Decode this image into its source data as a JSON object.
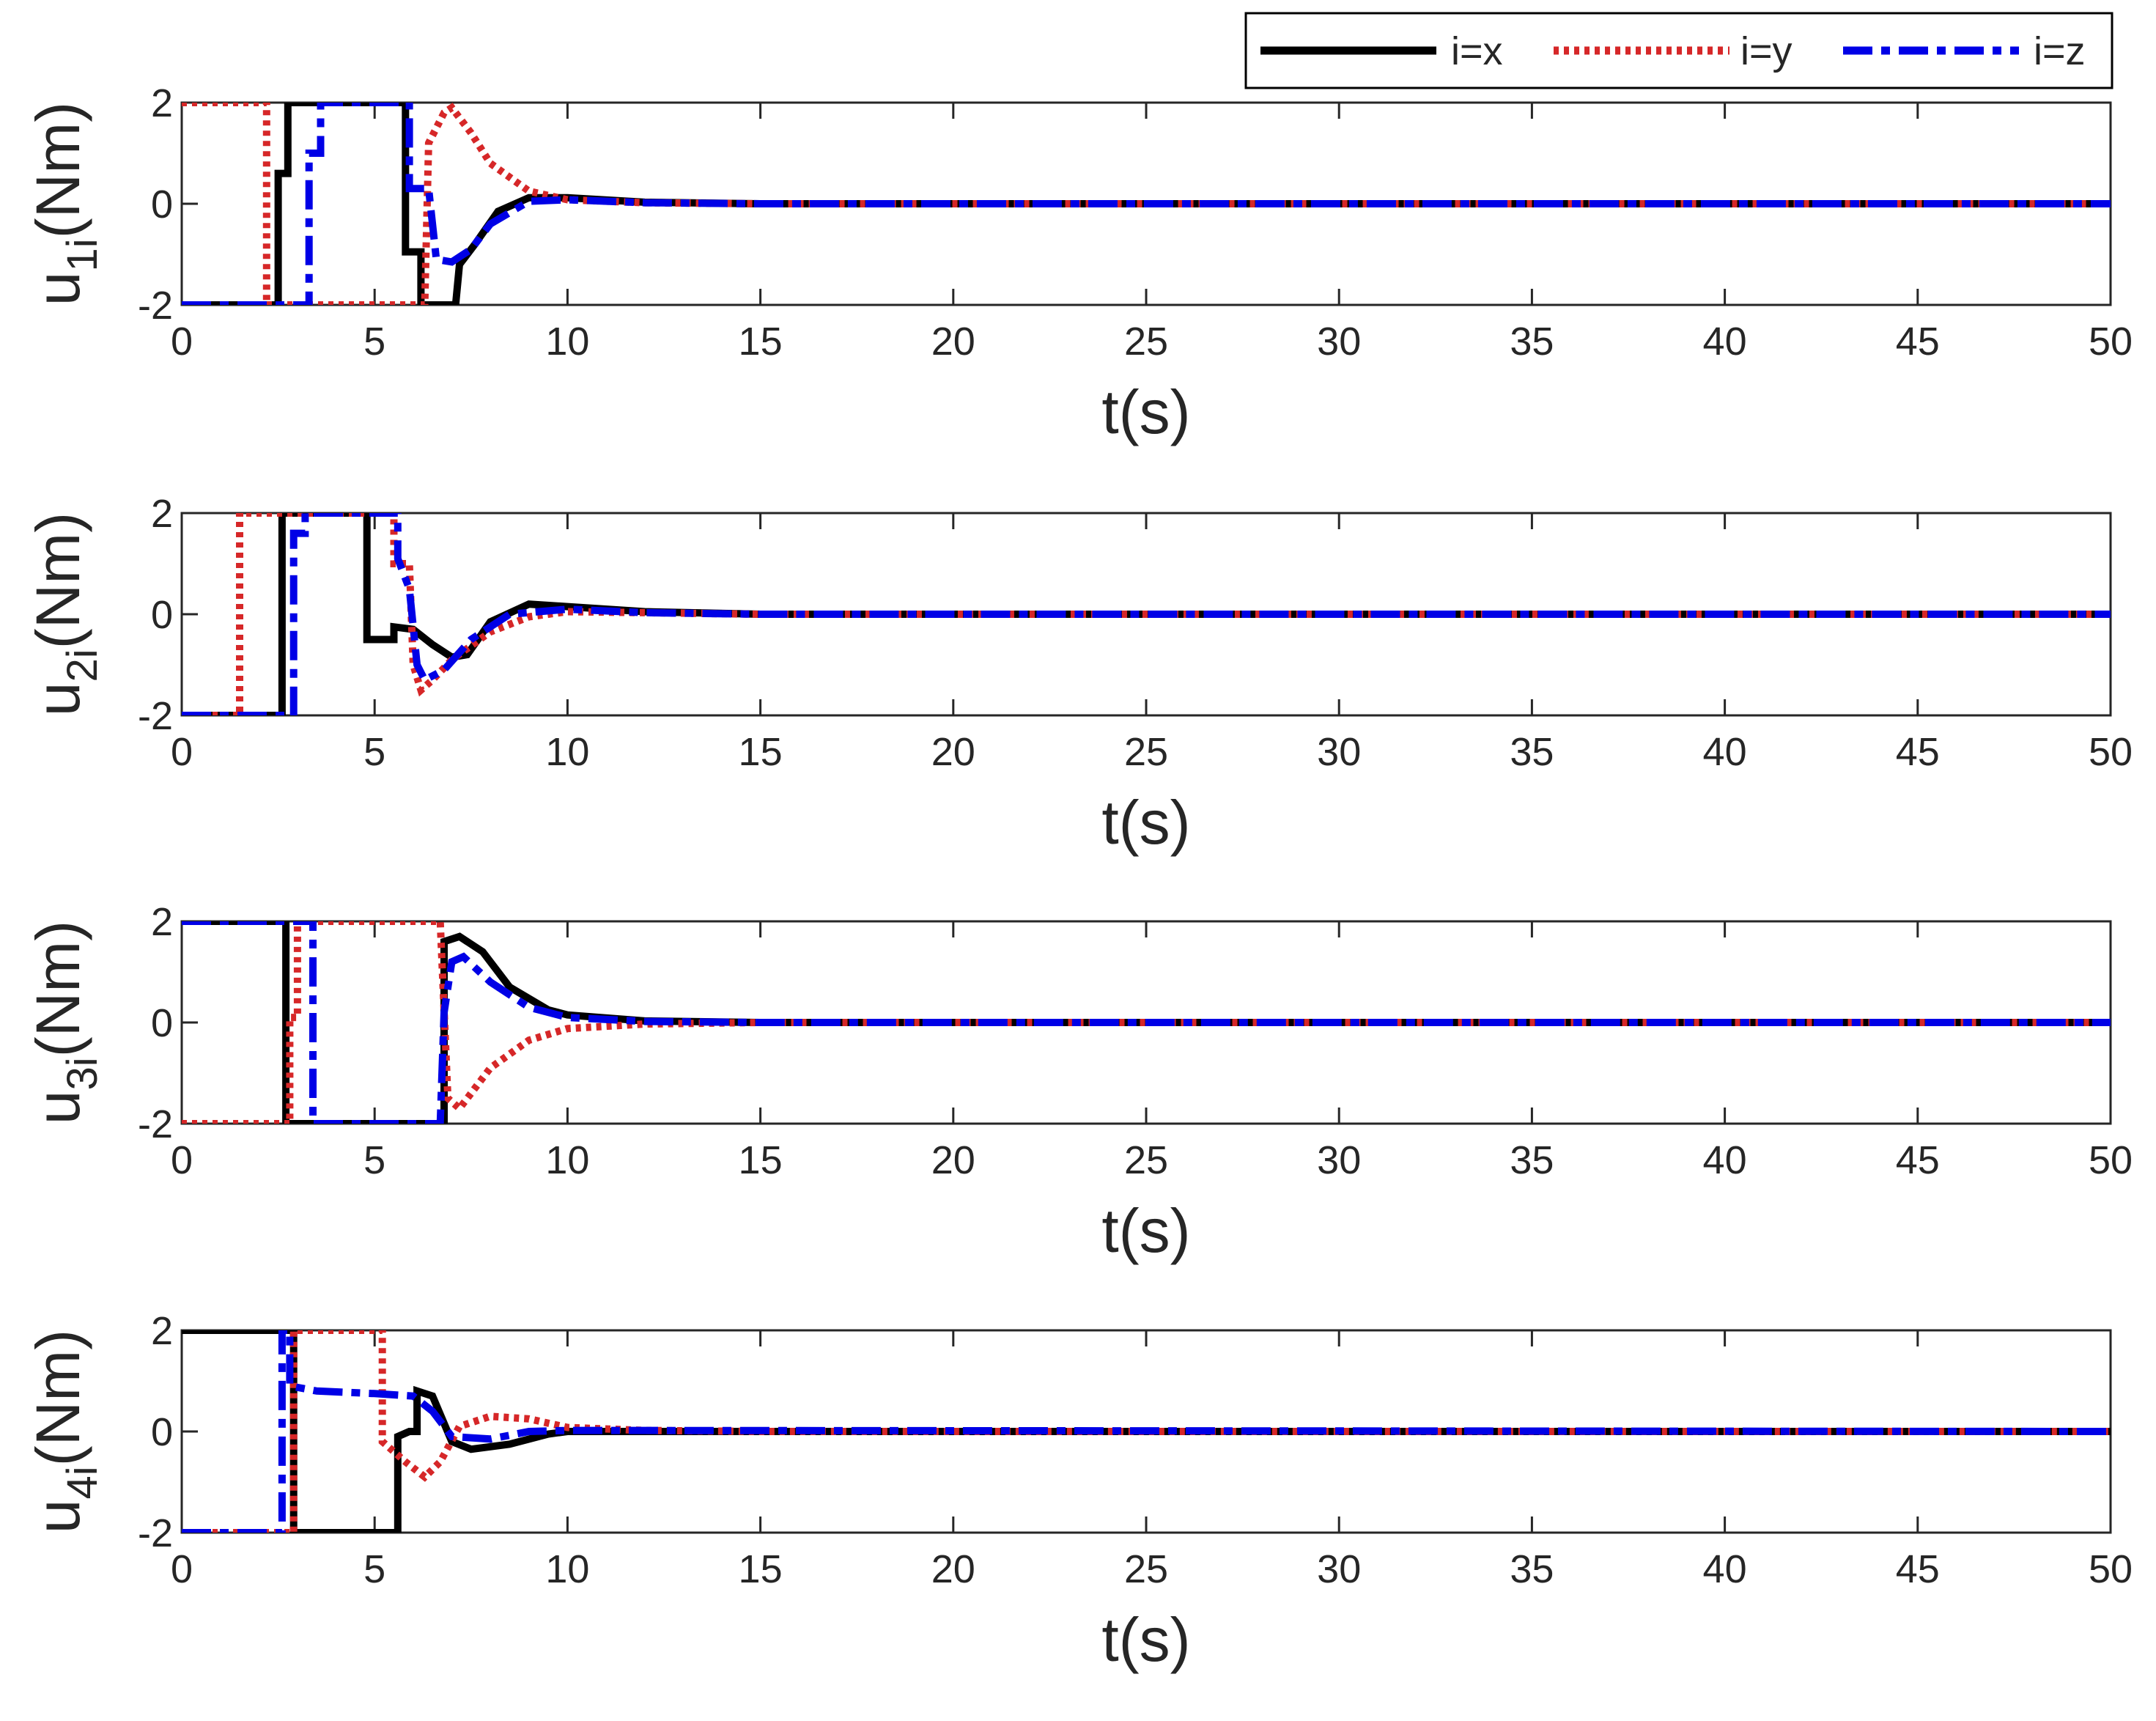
{
  "chart_data": {
    "type": "line",
    "legend": {
      "placement": "top-right",
      "entries": [
        {
          "label": "i=x",
          "color": "#000000",
          "style": "solid"
        },
        {
          "label": "i=y",
          "color": "#d62728",
          "style": "dotted"
        },
        {
          "label": "i=z",
          "color": "#0000e6",
          "style": "dashdot"
        }
      ]
    },
    "x_ticks": [
      "0",
      "5",
      "10",
      "15",
      "20",
      "25",
      "30",
      "35",
      "40",
      "45",
      "50"
    ],
    "y_ticks": [
      "-2",
      "0",
      "2"
    ],
    "subplots": [
      {
        "ylabel_main": "u",
        "ylabel_sub": "1i",
        "ylabel_unit": "(Nm)",
        "xlabel": "t(s)",
        "xlim": [
          0,
          50
        ],
        "ylim": [
          -2,
          2
        ],
        "series": [
          {
            "name": "i=x",
            "points": [
              [
                0,
                -2
              ],
              [
                2.5,
                -2
              ],
              [
                2.5,
                0.6
              ],
              [
                2.75,
                0.6
              ],
              [
                2.75,
                2
              ],
              [
                5.8,
                2
              ],
              [
                5.8,
                -0.95
              ],
              [
                6.2,
                -0.95
              ],
              [
                6.2,
                -2
              ],
              [
                7.1,
                -2
              ],
              [
                7.2,
                -1.2
              ],
              [
                7.6,
                -0.8
              ],
              [
                8.2,
                -0.15
              ],
              [
                9,
                0.12
              ],
              [
                10,
                0.12
              ],
              [
                12,
                0.03
              ],
              [
                15,
                0
              ],
              [
                50,
                0
              ]
            ]
          },
          {
            "name": "i=y",
            "points": [
              [
                0,
                2
              ],
              [
                2.2,
                2
              ],
              [
                2.2,
                -2
              ],
              [
                6.3,
                -2
              ],
              [
                6.4,
                1.2
              ],
              [
                6.8,
                1.8
              ],
              [
                7,
                1.9
              ],
              [
                7.5,
                1.4
              ],
              [
                8,
                0.8
              ],
              [
                9,
                0.25
              ],
              [
                10,
                0.08
              ],
              [
                12,
                0.02
              ],
              [
                15,
                0
              ],
              [
                50,
                0
              ]
            ]
          },
          {
            "name": "i=z",
            "points": [
              [
                0,
                -2
              ],
              [
                3.3,
                -2
              ],
              [
                3.3,
                1
              ],
              [
                3.6,
                1
              ],
              [
                3.6,
                2
              ],
              [
                5.9,
                2
              ],
              [
                5.9,
                0.3
              ],
              [
                6.4,
                0.3
              ],
              [
                6.6,
                -1.1
              ],
              [
                7,
                -1.15
              ],
              [
                7.5,
                -0.9
              ],
              [
                8,
                -0.4
              ],
              [
                9,
                0.05
              ],
              [
                10,
                0.08
              ],
              [
                12,
                0.02
              ],
              [
                15,
                0
              ],
              [
                50,
                0
              ]
            ]
          }
        ]
      },
      {
        "ylabel_main": "u",
        "ylabel_sub": "2i",
        "ylabel_unit": "(Nm)",
        "xlabel": "t(s)",
        "xlim": [
          0,
          50
        ],
        "ylim": [
          -2,
          2
        ],
        "series": [
          {
            "name": "i=x",
            "points": [
              [
                0,
                -2
              ],
              [
                2.6,
                -2
              ],
              [
                2.6,
                2
              ],
              [
                4.8,
                2
              ],
              [
                4.8,
                -0.5
              ],
              [
                5.5,
                -0.5
              ],
              [
                5.5,
                -0.25
              ],
              [
                6,
                -0.3
              ],
              [
                6.5,
                -0.6
              ],
              [
                7,
                -0.85
              ],
              [
                7.4,
                -0.8
              ],
              [
                8,
                -0.15
              ],
              [
                9,
                0.2
              ],
              [
                10,
                0.15
              ],
              [
                12,
                0.05
              ],
              [
                15,
                0
              ],
              [
                50,
                0
              ]
            ]
          },
          {
            "name": "i=y",
            "points": [
              [
                0,
                -2
              ],
              [
                1.5,
                -2
              ],
              [
                1.5,
                2
              ],
              [
                5.5,
                2
              ],
              [
                5.5,
                1
              ],
              [
                5.9,
                1
              ],
              [
                6,
                -1
              ],
              [
                6.2,
                -1.5
              ],
              [
                6.5,
                -1.3
              ],
              [
                7,
                -0.9
              ],
              [
                8,
                -0.35
              ],
              [
                9,
                -0.05
              ],
              [
                10,
                0.05
              ],
              [
                12,
                0.03
              ],
              [
                15,
                0
              ],
              [
                50,
                0
              ]
            ]
          },
          {
            "name": "i=z",
            "points": [
              [
                0,
                -2
              ],
              [
                2.9,
                -2
              ],
              [
                2.9,
                1.6
              ],
              [
                3.2,
                1.6
              ],
              [
                3.2,
                2
              ],
              [
                5.6,
                2
              ],
              [
                5.6,
                1.1
              ],
              [
                5.9,
                0.5
              ],
              [
                6.1,
                -1
              ],
              [
                6.3,
                -1.3
              ],
              [
                6.8,
                -1.1
              ],
              [
                7.5,
                -0.5
              ],
              [
                8.5,
                0
              ],
              [
                10,
                0.1
              ],
              [
                12,
                0.03
              ],
              [
                15,
                0
              ],
              [
                50,
                0
              ]
            ]
          }
        ]
      },
      {
        "ylabel_main": "u",
        "ylabel_sub": "3i",
        "ylabel_unit": "(Nm)",
        "xlabel": "t(s)",
        "xlim": [
          0,
          50
        ],
        "ylim": [
          -2,
          2
        ],
        "series": [
          {
            "name": "i=x",
            "points": [
              [
                0,
                2
              ],
              [
                2.7,
                2
              ],
              [
                2.7,
                -2
              ],
              [
                6.8,
                -2
              ],
              [
                6.8,
                1.6
              ],
              [
                7.2,
                1.7
              ],
              [
                7.8,
                1.4
              ],
              [
                8.5,
                0.7
              ],
              [
                9.5,
                0.25
              ],
              [
                10,
                0.15
              ],
              [
                12,
                0.03
              ],
              [
                15,
                0
              ],
              [
                50,
                0
              ]
            ]
          },
          {
            "name": "i=y",
            "points": [
              [
                0,
                -2
              ],
              [
                2.8,
                -2
              ],
              [
                2.8,
                0.1
              ],
              [
                3,
                0.1
              ],
              [
                3,
                2
              ],
              [
                6.7,
                2
              ],
              [
                6.9,
                -1.5
              ],
              [
                7.2,
                -1.7
              ],
              [
                8,
                -0.9
              ],
              [
                9,
                -0.35
              ],
              [
                10,
                -0.12
              ],
              [
                12,
                -0.03
              ],
              [
                15,
                0
              ],
              [
                50,
                0
              ]
            ]
          },
          {
            "name": "i=z",
            "points": [
              [
                0,
                2
              ],
              [
                3.4,
                2
              ],
              [
                3.4,
                -2
              ],
              [
                6.7,
                -2
              ],
              [
                6.8,
                0.2
              ],
              [
                7,
                1.2
              ],
              [
                7.3,
                1.3
              ],
              [
                8,
                0.8
              ],
              [
                9,
                0.3
              ],
              [
                10,
                0.1
              ],
              [
                12,
                0.02
              ],
              [
                15,
                0
              ],
              [
                50,
                0
              ]
            ]
          }
        ]
      },
      {
        "ylabel_main": "u",
        "ylabel_sub": "4i",
        "ylabel_unit": "(Nm)",
        "xlabel": "t(s)",
        "xlim": [
          0,
          50
        ],
        "ylim": [
          -2,
          2
        ],
        "series": [
          {
            "name": "i=x",
            "points": [
              [
                0,
                2
              ],
              [
                2.9,
                2
              ],
              [
                2.9,
                -2
              ],
              [
                5.6,
                -2
              ],
              [
                5.6,
                -0.1
              ],
              [
                5.9,
                0
              ],
              [
                6.1,
                0
              ],
              [
                6.1,
                0.8
              ],
              [
                6.5,
                0.7
              ],
              [
                7,
                -0.2
              ],
              [
                7.5,
                -0.35
              ],
              [
                8.5,
                -0.25
              ],
              [
                9.5,
                -0.05
              ],
              [
                10,
                0
              ],
              [
                50,
                0
              ]
            ]
          },
          {
            "name": "i=y",
            "points": [
              [
                0,
                -2
              ],
              [
                2.9,
                -2
              ],
              [
                2.9,
                2
              ],
              [
                5.2,
                2
              ],
              [
                5.2,
                -0.2
              ],
              [
                5.8,
                -0.6
              ],
              [
                6.3,
                -0.9
              ],
              [
                6.7,
                -0.6
              ],
              [
                7.2,
                0.1
              ],
              [
                8,
                0.3
              ],
              [
                9,
                0.25
              ],
              [
                10,
                0.08
              ],
              [
                12,
                0.02
              ],
              [
                15,
                0
              ],
              [
                50,
                0
              ]
            ]
          },
          {
            "name": "i=z",
            "points": [
              [
                0,
                -2
              ],
              [
                2.6,
                -2
              ],
              [
                2.6,
                2
              ],
              [
                2.8,
                2
              ],
              [
                2.8,
                0.9
              ],
              [
                3.5,
                0.8
              ],
              [
                5,
                0.75
              ],
              [
                6,
                0.7
              ],
              [
                6.5,
                0.4
              ],
              [
                7,
                -0.1
              ],
              [
                8,
                -0.15
              ],
              [
                9,
                0
              ],
              [
                10,
                0.02
              ],
              [
                50,
                0
              ]
            ]
          }
        ]
      }
    ]
  }
}
